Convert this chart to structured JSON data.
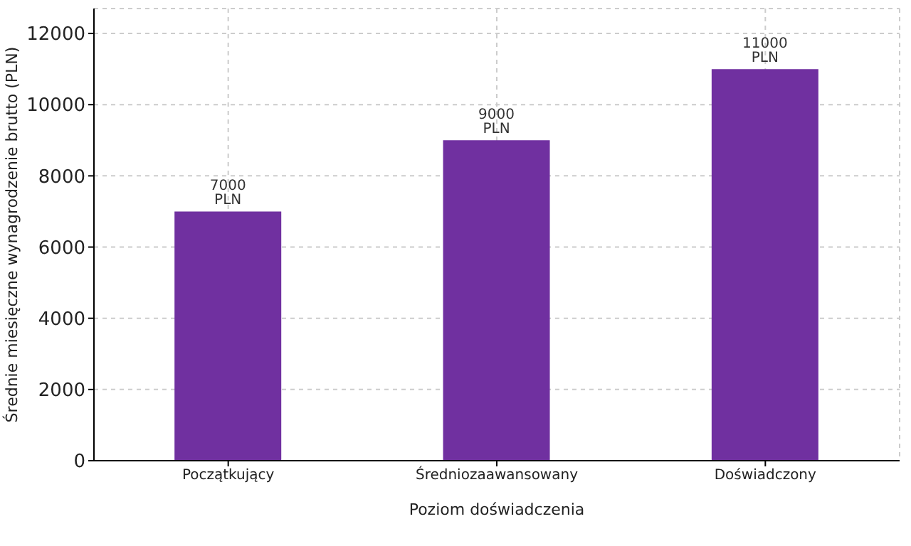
{
  "chart_data": {
    "type": "bar",
    "xlabel": "Poziom doświadczenia",
    "ylabel": "Średnie miesięczne wynagrodzenie brutto (PLN)",
    "categories": [
      "Początkujący",
      "Średniozaawansowany",
      "Doświadczony"
    ],
    "values": [
      7000,
      9000,
      11000
    ],
    "value_labels": [
      "7000 PLN",
      "9000 PLN",
      "11000 PLN"
    ],
    "color": "#7030a0",
    "ylim": [
      0,
      12700
    ],
    "yticks": [
      0,
      2000,
      4000,
      6000,
      8000,
      10000,
      12000
    ],
    "grid": true
  }
}
